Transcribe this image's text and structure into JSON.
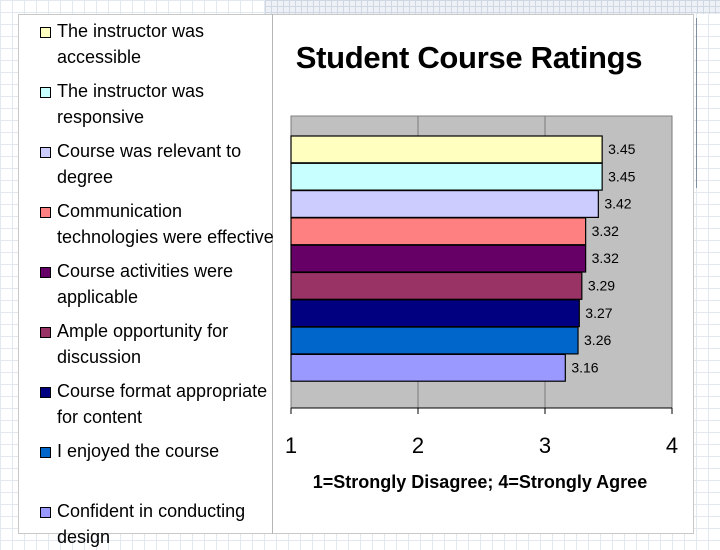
{
  "chart_data": {
    "type": "bar",
    "orientation": "horizontal",
    "title": "Student Course Ratings",
    "xlabel": "1=Strongly Disagree; 4=Strongly Agree",
    "xlim": [
      1,
      4
    ],
    "xticks": [
      "1",
      "2",
      "3",
      "4"
    ],
    "grid": true,
    "legend_position": "left",
    "categories": [
      "The instructor was accessible",
      "The instructor was responsive",
      "Course was relevant to degree",
      "Communication technologies were effective",
      "Course activities were applicable",
      "Ample opportunity for discussion",
      "Course format appropriate for content",
      "I enjoyed the course",
      "Confident in conducting design"
    ],
    "values": [
      3.45,
      3.45,
      3.42,
      3.32,
      3.32,
      3.29,
      3.27,
      3.26,
      3.16
    ],
    "value_labels": [
      "3.45",
      "3.45",
      "3.42",
      "3.32",
      "3.32",
      "3.29",
      "3.27",
      "3.26",
      "3.16"
    ],
    "colors": [
      "#ffffc0",
      "#c8ffff",
      "#ccccff",
      "#ff8080",
      "#660066",
      "#993366",
      "#000080",
      "#0066cc",
      "#9999ff"
    ],
    "plot_background": "#c0c0c0"
  }
}
